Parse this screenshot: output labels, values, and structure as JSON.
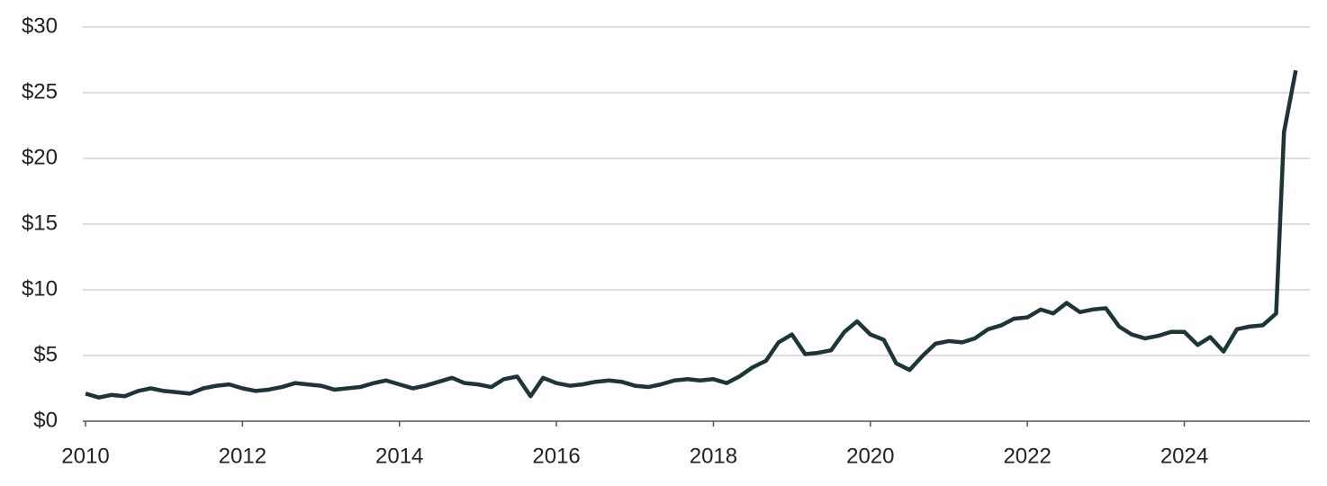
{
  "chart_data": {
    "type": "line",
    "x": [
      2010,
      2010.17,
      2010.33,
      2010.5,
      2010.67,
      2010.83,
      2011,
      2011.17,
      2011.33,
      2011.5,
      2011.67,
      2011.83,
      2012,
      2012.17,
      2012.33,
      2012.5,
      2012.67,
      2012.83,
      2013,
      2013.17,
      2013.33,
      2013.5,
      2013.67,
      2013.83,
      2014,
      2014.17,
      2014.33,
      2014.5,
      2014.67,
      2014.83,
      2015,
      2015.17,
      2015.33,
      2015.5,
      2015.67,
      2015.83,
      2016,
      2016.17,
      2016.33,
      2016.5,
      2016.67,
      2016.83,
      2017,
      2017.17,
      2017.33,
      2017.5,
      2017.67,
      2017.83,
      2018,
      2018.17,
      2018.33,
      2018.5,
      2018.67,
      2018.83,
      2019,
      2019.17,
      2019.33,
      2019.5,
      2019.67,
      2019.83,
      2020,
      2020.17,
      2020.33,
      2020.5,
      2020.67,
      2020.83,
      2021,
      2021.17,
      2021.33,
      2021.5,
      2021.67,
      2021.83,
      2022,
      2022.17,
      2022.33,
      2022.5,
      2022.67,
      2022.83,
      2023,
      2023.17,
      2023.33,
      2023.5,
      2023.67,
      2023.83,
      2024,
      2024.17,
      2024.33,
      2024.5,
      2024.67,
      2024.83,
      2025,
      2025.17,
      2025.27,
      2025.42
    ],
    "series": [
      {
        "color": "#1e3436",
        "values": [
          2.1,
          1.8,
          2.0,
          1.9,
          2.3,
          2.5,
          2.3,
          2.2,
          2.1,
          2.5,
          2.7,
          2.8,
          2.5,
          2.3,
          2.4,
          2.6,
          2.9,
          2.8,
          2.7,
          2.4,
          2.5,
          2.6,
          2.9,
          3.1,
          2.8,
          2.5,
          2.7,
          3.0,
          3.3,
          2.9,
          2.8,
          2.6,
          3.2,
          3.4,
          1.9,
          3.3,
          2.9,
          2.7,
          2.8,
          3.0,
          3.1,
          3.0,
          2.7,
          2.6,
          2.8,
          3.1,
          3.2,
          3.1,
          3.2,
          2.9,
          3.4,
          4.1,
          4.6,
          6.0,
          6.6,
          5.1,
          5.2,
          5.4,
          6.8,
          7.6,
          6.6,
          6.2,
          4.4,
          3.9,
          5.0,
          5.9,
          6.1,
          6.0,
          6.3,
          7.0,
          7.3,
          7.8,
          7.9,
          8.5,
          8.2,
          9.0,
          8.3,
          8.5,
          8.6,
          7.2,
          6.6,
          6.3,
          6.5,
          6.8,
          6.8,
          5.8,
          6.4,
          5.3,
          7.0,
          7.2,
          7.3,
          8.2,
          22,
          26.7
        ]
      }
    ],
    "xlim": [
      2010,
      2025.6
    ],
    "xticks": [
      2010,
      2012,
      2014,
      2016,
      2018,
      2020,
      2022,
      2024
    ],
    "ylim": [
      0,
      30
    ],
    "yticks": [
      {
        "value": 0,
        "label": "$0"
      },
      {
        "value": 5,
        "label": "$5"
      },
      {
        "value": 10,
        "label": "$10"
      },
      {
        "value": 15,
        "label": "$15"
      },
      {
        "value": 20,
        "label": "$20"
      },
      {
        "value": 25,
        "label": "$25"
      },
      {
        "value": 30,
        "label": "$30"
      }
    ],
    "grid": true
  }
}
